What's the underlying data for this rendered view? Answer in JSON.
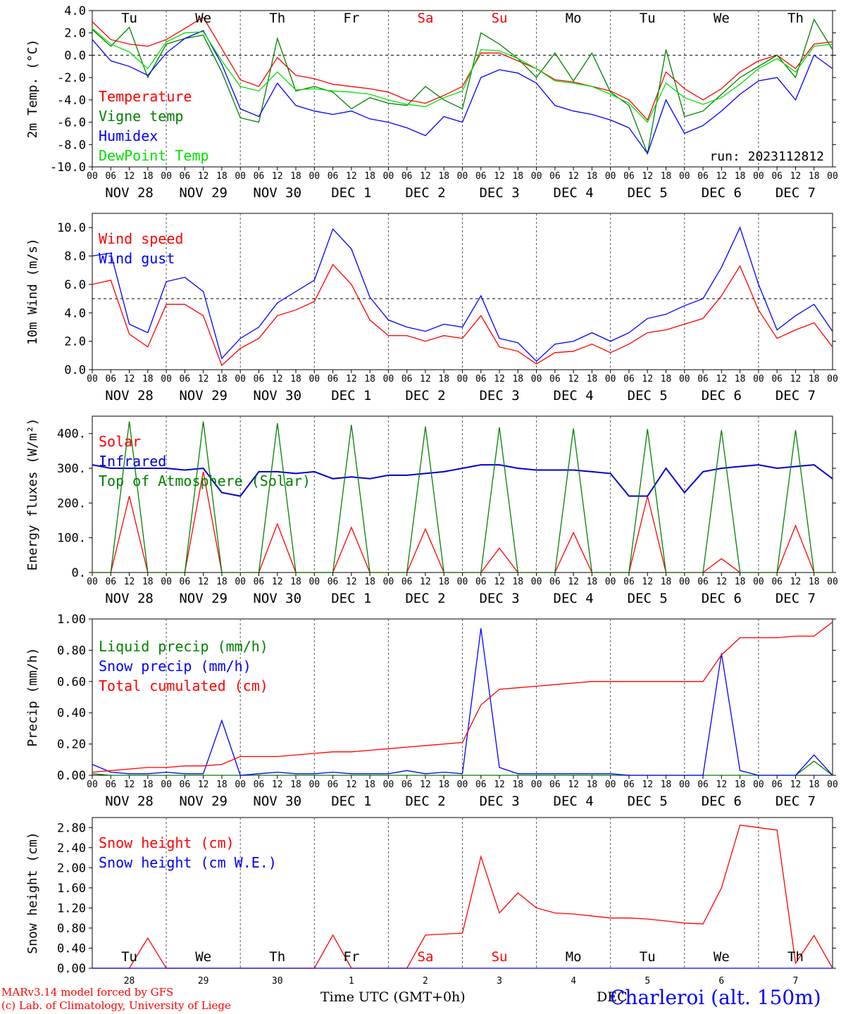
{
  "footer": {
    "credit_line1": "MARv3.14 model forced by GFS",
    "credit_line2": "(c) Lab. of Climatology, University of Liege",
    "time_axis": "Time UTC (GMT+0h)",
    "bottom_month": "DEC",
    "station": "Charleroi (alt. 150m)"
  },
  "days": {
    "names": [
      "Tu",
      "We",
      "Th",
      "Fr",
      "Sa",
      "Su",
      "Mo",
      "Tu",
      "We",
      "Th"
    ],
    "colors": [
      "#000000",
      "#000000",
      "#000000",
      "#000000",
      "#ff0000",
      "#ff0000",
      "#000000",
      "#000000",
      "#000000",
      "#000000"
    ],
    "dates": [
      "NOV 28",
      "NOV 29",
      "NOV 30",
      "DEC  1",
      "DEC  2",
      "DEC  3",
      "DEC  4",
      "DEC  5",
      "DEC  6",
      "DEC  7"
    ],
    "day_numbers": [
      "28",
      "29",
      "30",
      "1",
      "2",
      "3",
      "4",
      "5",
      "6",
      "7"
    ],
    "hour_ticks": [
      "00",
      "06",
      "12",
      "18"
    ],
    "end_tick": "00"
  },
  "colors": {
    "red": "#ff0000",
    "green": "#008000",
    "blue": "#0000ff",
    "lightgreen": "#00e000",
    "darkblue": "#0000cc"
  },
  "chart_data": [
    {
      "type": "line",
      "ylabel": "2m Temp. (°C)",
      "ylim": [
        -10,
        4
      ],
      "yticks": [
        "4.0",
        "2.0",
        "0.0",
        "-2.0",
        "-4.0",
        "-6.0",
        "-8.0",
        "-10.0"
      ],
      "annotation": "run: 2023112812",
      "x_hours": [
        0,
        6,
        12,
        18,
        24,
        30,
        36,
        42,
        48,
        54,
        60,
        66,
        72,
        78,
        84,
        90,
        96,
        102,
        108,
        114,
        120,
        126,
        132,
        138,
        144,
        150,
        156,
        162,
        168,
        174,
        180,
        186,
        192,
        198,
        204,
        210,
        216,
        222,
        228,
        234,
        240
      ],
      "series": [
        {
          "name": "Temperature",
          "color": "red",
          "values": [
            3.0,
            1.4,
            1.0,
            0.8,
            1.4,
            2.4,
            3.4,
            0.6,
            -2.2,
            -2.8,
            -0.2,
            -1.8,
            -2.1,
            -2.6,
            -2.8,
            -3.0,
            -3.3,
            -4.0,
            -4.3,
            -3.6,
            -2.8,
            0.2,
            0.2,
            -0.5,
            -1.2,
            -2.2,
            -2.4,
            -2.8,
            -3.2,
            -4.0,
            -5.8,
            -1.5,
            -3.0,
            -4.0,
            -3.0,
            -1.5,
            -0.5,
            0.0,
            -1.2,
            1.0,
            1.2
          ]
        },
        {
          "name": "Vigne temp",
          "color": "green",
          "values": [
            2.3,
            0.8,
            2.5,
            -2.0,
            1.0,
            1.5,
            1.8,
            -1.5,
            -5.6,
            -6.0,
            1.5,
            -3.2,
            -2.8,
            -3.3,
            -4.8,
            -3.8,
            -4.3,
            -4.5,
            -2.8,
            -4.0,
            -4.8,
            2.0,
            1.0,
            -0.3,
            -2.0,
            0.2,
            -2.3,
            0.2,
            -3.3,
            -4.5,
            -8.8,
            0.5,
            -5.5,
            -5.0,
            -3.5,
            -2.0,
            -1.0,
            0.0,
            -2.0,
            3.2,
            0.5
          ]
        },
        {
          "name": "Humidex",
          "color": "blue",
          "values": [
            1.4,
            -0.5,
            -1.0,
            -1.8,
            0.2,
            1.5,
            2.2,
            -0.8,
            -4.8,
            -5.5,
            -2.5,
            -4.5,
            -5.0,
            -5.3,
            -5.0,
            -5.7,
            -6.0,
            -6.5,
            -7.2,
            -5.5,
            -6.0,
            -2.0,
            -1.3,
            -1.6,
            -2.5,
            -4.5,
            -5.0,
            -5.3,
            -5.8,
            -6.5,
            -8.8,
            -4.0,
            -7.0,
            -6.3,
            -5.0,
            -3.5,
            -2.3,
            -2.0,
            -4.0,
            0.0,
            -1.2
          ]
        },
        {
          "name": "DewPoint Temp",
          "color": "lightgreen",
          "values": [
            2.4,
            1.0,
            0.3,
            -1.2,
            1.2,
            2.0,
            2.1,
            -0.5,
            -2.8,
            -3.2,
            -1.5,
            -3.1,
            -3.0,
            -3.2,
            -3.3,
            -3.5,
            -4.0,
            -4.4,
            -4.6,
            -3.8,
            -3.2,
            0.5,
            0.4,
            -0.3,
            -1.2,
            -2.3,
            -2.5,
            -2.8,
            -3.5,
            -4.3,
            -6.0,
            -2.5,
            -3.8,
            -4.4,
            -3.8,
            -2.6,
            -1.2,
            -0.3,
            -1.5,
            0.8,
            1.0
          ]
        }
      ]
    },
    {
      "type": "line",
      "ylabel": "10m Wind (m/s)",
      "ylim": [
        0,
        11
      ],
      "yticks": [
        "10.0",
        "8.0",
        "6.0",
        "4.0",
        "2.0",
        "0.0"
      ],
      "refline": 5,
      "x_hours": [
        0,
        6,
        12,
        18,
        24,
        30,
        36,
        42,
        48,
        54,
        60,
        66,
        72,
        78,
        84,
        90,
        96,
        102,
        108,
        114,
        120,
        126,
        132,
        138,
        144,
        150,
        156,
        162,
        168,
        174,
        180,
        186,
        192,
        198,
        204,
        210,
        216,
        222,
        228,
        234,
        240
      ],
      "series": [
        {
          "name": "Wind speed",
          "color": "red",
          "values": [
            6.0,
            6.3,
            2.5,
            1.6,
            4.6,
            4.6,
            3.8,
            0.3,
            1.5,
            2.2,
            3.8,
            4.2,
            4.8,
            7.4,
            6.0,
            3.5,
            2.4,
            2.4,
            2.0,
            2.4,
            2.2,
            3.8,
            1.6,
            1.3,
            0.4,
            1.2,
            1.3,
            1.8,
            1.2,
            1.8,
            2.6,
            2.8,
            3.2,
            3.6,
            5.2,
            7.3,
            4.2,
            2.2,
            2.8,
            3.3,
            1.6
          ]
        },
        {
          "name": "Wind gust",
          "color": "blue",
          "values": [
            8.0,
            8.2,
            3.2,
            2.6,
            6.2,
            6.5,
            5.5,
            0.8,
            2.2,
            3.0,
            4.7,
            5.5,
            6.3,
            9.9,
            8.5,
            5.1,
            3.5,
            3.0,
            2.7,
            3.2,
            3.0,
            5.2,
            2.2,
            1.9,
            0.6,
            1.8,
            2.0,
            2.6,
            2.0,
            2.6,
            3.6,
            3.9,
            4.5,
            5.0,
            7.2,
            10.0,
            6.0,
            2.8,
            3.8,
            4.6,
            2.7
          ]
        }
      ]
    },
    {
      "type": "line",
      "ylabel": "Energy fluxes (W/m²)",
      "ylim": [
        0,
        450
      ],
      "yticks": [
        "400.",
        "300.",
        "200.",
        "100.",
        "0."
      ],
      "x_hours": [
        0,
        6,
        12,
        18,
        24,
        30,
        36,
        42,
        48,
        54,
        60,
        66,
        72,
        78,
        84,
        90,
        96,
        102,
        108,
        114,
        120,
        126,
        132,
        138,
        144,
        150,
        156,
        162,
        168,
        174,
        180,
        186,
        192,
        198,
        204,
        210,
        216,
        222,
        228,
        234,
        240
      ],
      "series": [
        {
          "name": "Solar",
          "color": "red",
          "values": [
            0,
            0,
            220,
            0,
            0,
            0,
            290,
            0,
            0,
            0,
            140,
            0,
            0,
            0,
            130,
            0,
            0,
            0,
            125,
            0,
            0,
            0,
            70,
            0,
            0,
            0,
            115,
            0,
            0,
            0,
            220,
            0,
            0,
            0,
            40,
            0,
            0,
            0,
            135,
            0,
            0
          ]
        },
        {
          "name": "Infrared",
          "color": "darkblue",
          "values": [
            310,
            300,
            300,
            300,
            300,
            295,
            300,
            230,
            220,
            290,
            290,
            285,
            290,
            270,
            275,
            270,
            280,
            280,
            285,
            290,
            300,
            310,
            310,
            300,
            295,
            295,
            295,
            290,
            285,
            220,
            220,
            300,
            230,
            290,
            300,
            305,
            310,
            300,
            305,
            310,
            270
          ]
        },
        {
          "name": "Top of Atmosphere (Solar)",
          "color": "green",
          "values": [
            0,
            0,
            435,
            0,
            0,
            0,
            435,
            0,
            0,
            0,
            430,
            0,
            0,
            0,
            425,
            0,
            0,
            0,
            420,
            0,
            0,
            0,
            418,
            0,
            0,
            0,
            415,
            0,
            0,
            0,
            413,
            0,
            0,
            0,
            410,
            0,
            0,
            0,
            410,
            0,
            0
          ]
        }
      ]
    },
    {
      "type": "line",
      "ylabel": "Precip (mm/h)",
      "ylim": [
        0,
        1.0
      ],
      "yticks": [
        "1.00",
        "0.80",
        "0.60",
        "0.40",
        "0.20",
        "0.00"
      ],
      "x_hours": [
        0,
        6,
        12,
        18,
        24,
        30,
        36,
        42,
        48,
        54,
        60,
        66,
        72,
        78,
        84,
        90,
        96,
        102,
        108,
        114,
        120,
        126,
        132,
        138,
        144,
        150,
        156,
        162,
        168,
        174,
        180,
        186,
        192,
        198,
        204,
        210,
        216,
        222,
        228,
        234,
        240
      ],
      "series": [
        {
          "name": "Liquid precip (mm/h)",
          "color": "green",
          "values": [
            0.01,
            0,
            0,
            0,
            0,
            0,
            0,
            0,
            0,
            0,
            0,
            0,
            0,
            0,
            0,
            0,
            0,
            0,
            0,
            0,
            0,
            0,
            0,
            0,
            0,
            0,
            0,
            0,
            0,
            0,
            0,
            0,
            0,
            0,
            0,
            0,
            0,
            0,
            0,
            0.09,
            0
          ]
        },
        {
          "name": "Snow precip (mm/h)",
          "color": "blue",
          "values": [
            0.07,
            0.02,
            0.01,
            0.01,
            0.02,
            0.01,
            0.01,
            0.35,
            0,
            0.01,
            0.02,
            0.01,
            0.01,
            0.02,
            0.01,
            0.01,
            0.01,
            0.03,
            0.01,
            0.02,
            0.01,
            0.94,
            0.05,
            0.01,
            0.01,
            0.01,
            0.01,
            0.01,
            0.01,
            0,
            0,
            0,
            0,
            0,
            0.78,
            0.03,
            0,
            0,
            0,
            0.13,
            0
          ]
        },
        {
          "name": "Total cumulated (cm)",
          "color": "red",
          "values": [
            0.02,
            0.03,
            0.04,
            0.05,
            0.05,
            0.06,
            0.06,
            0.07,
            0.12,
            0.12,
            0.12,
            0.13,
            0.14,
            0.15,
            0.15,
            0.16,
            0.17,
            0.18,
            0.19,
            0.2,
            0.21,
            0.45,
            0.55,
            0.56,
            0.57,
            0.58,
            0.59,
            0.6,
            0.6,
            0.6,
            0.6,
            0.6,
            0.6,
            0.6,
            0.77,
            0.88,
            0.88,
            0.88,
            0.89,
            0.89,
            0.98
          ]
        }
      ]
    },
    {
      "type": "line",
      "ylabel": "Snow height (cm)",
      "ylim": [
        0,
        3.0
      ],
      "yticks": [
        "2.80",
        "2.40",
        "2.00",
        "1.60",
        "1.20",
        "0.80",
        "0.40",
        "0.00"
      ],
      "x_hours": [
        0,
        6,
        12,
        18,
        24,
        30,
        36,
        42,
        48,
        54,
        60,
        66,
        72,
        78,
        84,
        90,
        96,
        102,
        108,
        114,
        120,
        126,
        132,
        138,
        144,
        150,
        156,
        162,
        168,
        174,
        180,
        186,
        192,
        198,
        204,
        210,
        216,
        222,
        228,
        234,
        240
      ],
      "series": [
        {
          "name": "Snow height (cm)",
          "color": "red",
          "values": [
            0,
            0,
            0,
            0.6,
            0,
            0,
            0,
            0,
            0,
            0,
            0,
            0,
            0,
            0.66,
            0,
            0,
            0,
            0,
            0.66,
            0.68,
            0.7,
            2.22,
            1.1,
            1.5,
            1.2,
            1.1,
            1.08,
            1.04,
            1.0,
            1.0,
            0.98,
            0.94,
            0.9,
            0.88,
            1.6,
            2.85,
            2.8,
            2.75,
            0.1,
            0.65,
            0
          ]
        },
        {
          "name": "Snow height (cm W.E.)",
          "color": "blue",
          "values": [
            0,
            0,
            0,
            0,
            0,
            0,
            0,
            0,
            0,
            0,
            0,
            0,
            0,
            0,
            0,
            0,
            0,
            0,
            0,
            0,
            0,
            0,
            0,
            0,
            0,
            0,
            0,
            0,
            0,
            0,
            0,
            0,
            0,
            0,
            0,
            0,
            0,
            0,
            0,
            0,
            0
          ]
        }
      ]
    }
  ]
}
